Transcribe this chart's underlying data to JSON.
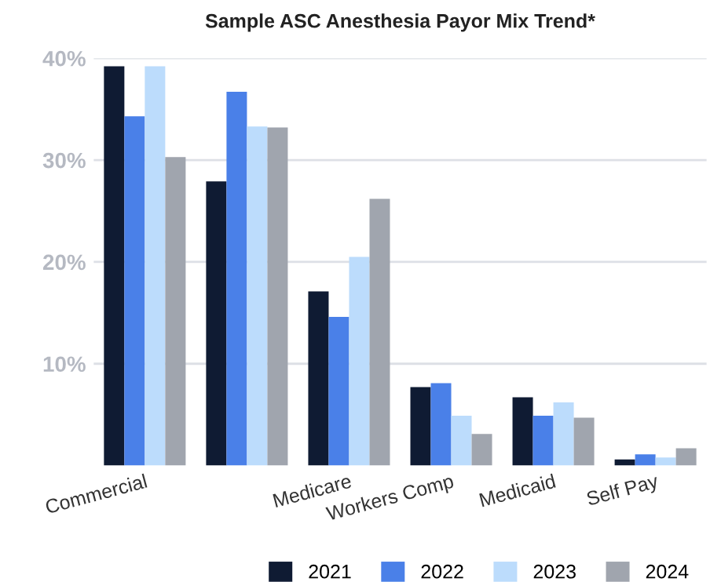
{
  "chart_data": {
    "type": "bar",
    "title": "Sample ASC Anesthesia Payor Mix Trend*",
    "categories": [
      "Commercial",
      null,
      "Medicare",
      "Workers Comp",
      "Medicaid",
      "Self Pay"
    ],
    "series": [
      {
        "name": "2021",
        "color": "#0f1b33",
        "values": [
          39.2,
          27.9,
          17.1,
          7.7,
          6.7,
          0.6
        ]
      },
      {
        "name": "2022",
        "color": "#4a80e8",
        "values": [
          34.3,
          36.7,
          14.6,
          8.1,
          4.9,
          1.1
        ]
      },
      {
        "name": "2023",
        "color": "#bcdcfc",
        "values": [
          39.2,
          33.3,
          20.5,
          4.9,
          6.2,
          0.8
        ]
      },
      {
        "name": "2024",
        "color": "#a0a5ae",
        "values": [
          30.3,
          33.2,
          26.2,
          3.1,
          4.7,
          1.7
        ]
      }
    ],
    "ylim": [
      0,
      40
    ],
    "yticks": [
      {
        "value": 10,
        "label": "10%"
      },
      {
        "value": 20,
        "label": "20%"
      },
      {
        "value": 30,
        "label": "30%"
      },
      {
        "value": 40,
        "label": "40%"
      }
    ],
    "grid": "y",
    "legend": "bottom"
  }
}
